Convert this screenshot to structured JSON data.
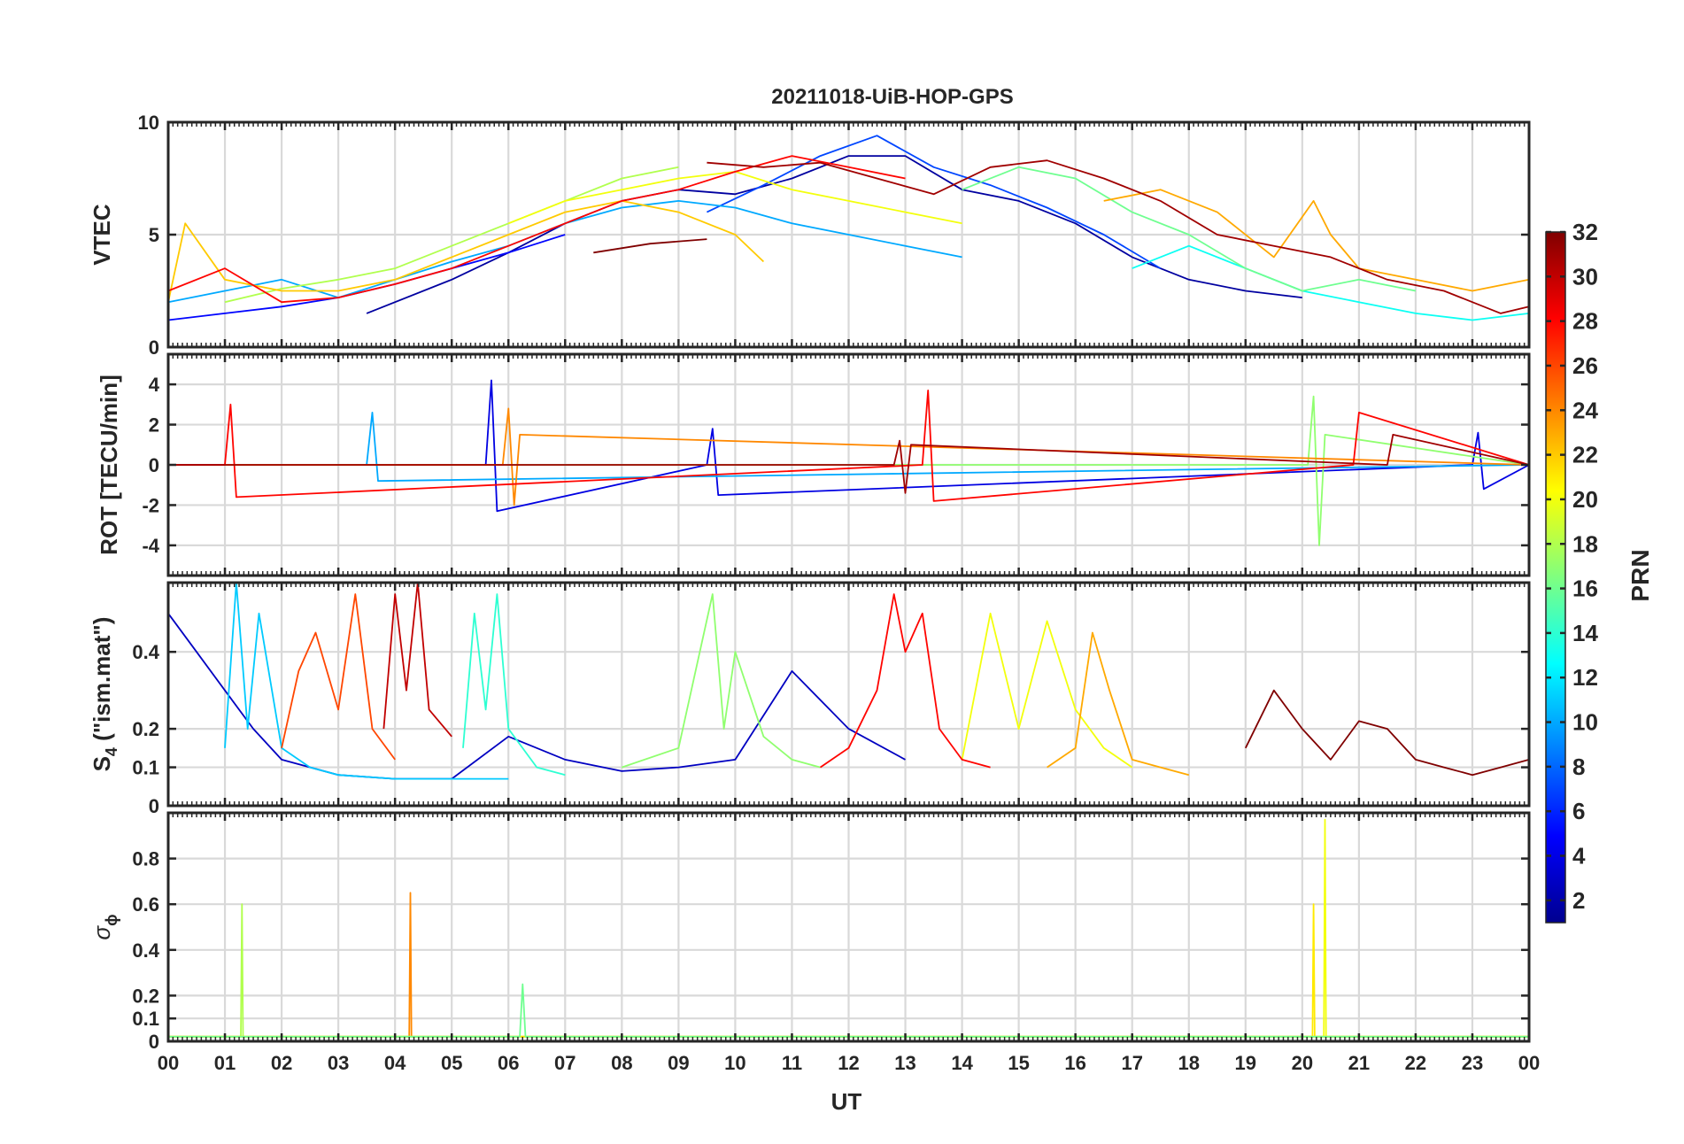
{
  "chart_data": {
    "type": "line",
    "title": "20211018-UiB-HOP-GPS",
    "xlabel": "UT",
    "x_tick_labels": [
      "00",
      "01",
      "02",
      "03",
      "04",
      "05",
      "06",
      "07",
      "08",
      "09",
      "10",
      "11",
      "12",
      "13",
      "14",
      "15",
      "16",
      "17",
      "18",
      "19",
      "20",
      "21",
      "22",
      "23",
      "00"
    ],
    "xlim_hours": [
      0,
      24
    ],
    "colorbar": {
      "label": "PRN",
      "range": [
        1,
        32
      ],
      "tick_labels": [
        "2",
        "4",
        "6",
        "8",
        "10",
        "12",
        "14",
        "16",
        "18",
        "20",
        "22",
        "24",
        "26",
        "28",
        "30",
        "32"
      ],
      "tick_values": [
        2,
        4,
        6,
        8,
        10,
        12,
        14,
        16,
        18,
        20,
        22,
        24,
        26,
        28,
        30,
        32
      ],
      "colormap": "jet"
    },
    "panels": [
      {
        "id": "vtec",
        "ylabel": "VTEC",
        "ylim": [
          0,
          10
        ],
        "y_ticks": [
          0,
          5,
          10
        ],
        "y_tick_labels": [
          "0",
          "5",
          "10"
        ],
        "series": [
          {
            "prn": 2,
            "hours": [
              3.5,
              5,
              6,
              7,
              8,
              9,
              10,
              11,
              12,
              13,
              14,
              15,
              16,
              17,
              18,
              19,
              20
            ],
            "values": [
              1.5,
              3.0,
              4.2,
              5.5,
              6.5,
              7.0,
              6.8,
              7.5,
              8.5,
              8.5,
              7.0,
              6.5,
              5.5,
              4.0,
              3.0,
              2.5,
              2.2
            ]
          },
          {
            "prn": 5,
            "hours": [
              0,
              1,
              2,
              3,
              4,
              5,
              6,
              7
            ],
            "values": [
              1.2,
              1.5,
              1.8,
              2.2,
              2.8,
              3.5,
              4.2,
              5.0
            ]
          },
          {
            "prn": 7,
            "hours": [
              9.5,
              10.5,
              11.5,
              12.5,
              13.5,
              14.5,
              15.5,
              16.5,
              17.5
            ],
            "values": [
              6.0,
              7.2,
              8.5,
              9.4,
              8.0,
              7.2,
              6.2,
              5.0,
              3.5
            ]
          },
          {
            "prn": 10,
            "hours": [
              0,
              1,
              2,
              3,
              4,
              5,
              6,
              7,
              8,
              9,
              10,
              11,
              12,
              13,
              14
            ],
            "values": [
              2.0,
              2.5,
              3.0,
              2.2,
              3.0,
              3.8,
              4.5,
              5.5,
              6.2,
              6.5,
              6.2,
              5.5,
              5.0,
              4.5,
              4.0
            ]
          },
          {
            "prn": 13,
            "hours": [
              17,
              18,
              19,
              20,
              21,
              22,
              23,
              24
            ],
            "values": [
              3.5,
              4.5,
              3.5,
              2.5,
              2.0,
              1.5,
              1.2,
              1.5
            ]
          },
          {
            "prn": 16,
            "hours": [
              14,
              15,
              16,
              17,
              18,
              19,
              20,
              21,
              22
            ],
            "values": [
              7.0,
              8.0,
              7.5,
              6.0,
              5.0,
              3.5,
              2.5,
              3.0,
              2.5
            ]
          },
          {
            "prn": 18,
            "hours": [
              1,
              2,
              3,
              4,
              5,
              6,
              7,
              8,
              9
            ],
            "values": [
              2.0,
              2.6,
              3.0,
              3.5,
              4.5,
              5.5,
              6.5,
              7.5,
              8.0
            ]
          },
          {
            "prn": 20,
            "hours": [
              6,
              7,
              8,
              9,
              10,
              11,
              12,
              13,
              14
            ],
            "values": [
              5.5,
              6.5,
              7.0,
              7.5,
              7.8,
              7.0,
              6.5,
              6.0,
              5.5
            ]
          },
          {
            "prn": 22,
            "hours": [
              0,
              0.3,
              1,
              2,
              3,
              4,
              5,
              6,
              7,
              8,
              9,
              10,
              10.5
            ],
            "values": [
              2.0,
              5.5,
              3.0,
              2.5,
              2.5,
              3.0,
              4.0,
              5.0,
              6.0,
              6.5,
              6.0,
              5.0,
              3.8
            ]
          },
          {
            "prn": 23,
            "hours": [
              16.5,
              17.5,
              18.5,
              19.5,
              20.2,
              20.5,
              21,
              22,
              23,
              24
            ],
            "values": [
              6.5,
              7.0,
              6.0,
              4.0,
              6.5,
              5.0,
              3.5,
              3.0,
              2.5,
              3.0
            ]
          },
          {
            "prn": 28,
            "hours": [
              0,
              1,
              2,
              3,
              4,
              5,
              6,
              7,
              8,
              9,
              10,
              11,
              12,
              13
            ],
            "values": [
              2.5,
              3.5,
              2.0,
              2.2,
              2.8,
              3.5,
              4.5,
              5.5,
              6.5,
              7.0,
              7.8,
              8.5,
              8.0,
              7.5
            ]
          },
          {
            "prn": 31,
            "hours": [
              9.5,
              10.5,
              11.5,
              12.5,
              13.5,
              14.5,
              15.5,
              16.5,
              17.5,
              18.5,
              19.5,
              20.5,
              21.5,
              22.5,
              23.5,
              24
            ],
            "values": [
              8.2,
              8.0,
              8.2,
              7.5,
              6.8,
              8.0,
              8.3,
              7.5,
              6.5,
              5.0,
              4.5,
              4.0,
              3.0,
              2.5,
              1.5,
              1.8
            ]
          },
          {
            "prn": 32,
            "hours": [
              7.5,
              8.5,
              9.5
            ],
            "values": [
              4.2,
              4.6,
              4.8
            ]
          }
        ]
      },
      {
        "id": "rot",
        "ylabel": "ROT [TECU/min]",
        "ylim": [
          -5.5,
          5.5
        ],
        "y_ticks": [
          -4,
          -2,
          0,
          2,
          4
        ],
        "y_tick_labels": [
          "-4",
          "-2",
          "0",
          "2",
          "4"
        ],
        "series": [
          {
            "prn": 4,
            "hours": [
              0,
              5.6,
              5.7,
              5.8,
              9.5,
              9.6,
              9.7,
              23,
              23.1,
              23.2,
              24
            ],
            "values": [
              0,
              0,
              4.2,
              -2.3,
              0,
              1.8,
              -1.5,
              0,
              1.6,
              -1.2,
              0
            ]
          },
          {
            "prn": 10,
            "hours": [
              0,
              3.5,
              3.6,
              3.7,
              24
            ],
            "values": [
              0,
              0,
              2.6,
              -0.8,
              0
            ]
          },
          {
            "prn": 17,
            "hours": [
              0,
              20.1,
              20.2,
              20.3,
              20.4,
              24
            ],
            "values": [
              0,
              0,
              3.4,
              -4.0,
              1.5,
              0
            ]
          },
          {
            "prn": 24,
            "hours": [
              0,
              5.9,
              6.0,
              6.1,
              6.2,
              24
            ],
            "values": [
              0,
              0,
              2.8,
              -2.0,
              1.5,
              0
            ]
          },
          {
            "prn": 28,
            "hours": [
              0,
              1.0,
              1.1,
              1.2,
              13.3,
              13.4,
              13.5,
              20.9,
              21.0,
              24
            ],
            "values": [
              0,
              0,
              3.0,
              -1.6,
              0,
              3.7,
              -1.8,
              0,
              2.6,
              0
            ]
          },
          {
            "prn": 31,
            "hours": [
              0,
              12.8,
              12.9,
              13.0,
              13.1,
              21.5,
              21.6,
              24
            ],
            "values": [
              0,
              0,
              1.2,
              -1.4,
              1.0,
              0,
              1.5,
              0
            ]
          }
        ]
      },
      {
        "id": "s4",
        "ylabel": "S4 (\"ism.mat\")",
        "ylabel_main": "S",
        "ylabel_sub": "4",
        "ylabel_rest": " (\"ism.mat\")",
        "ylim": [
          0,
          0.58
        ],
        "y_ticks": [
          0,
          0.1,
          0.2,
          0.4
        ],
        "y_tick_labels": [
          "0",
          "0.1",
          "0.2",
          "0.4"
        ],
        "series": [
          {
            "prn": 3,
            "hours": [
              0,
              0.5,
              1,
              1.5,
              2,
              3,
              4,
              5,
              6,
              7,
              8,
              9,
              10,
              11,
              12,
              13
            ],
            "values": [
              0.5,
              0.4,
              0.3,
              0.2,
              0.12,
              0.08,
              0.07,
              0.07,
              0.18,
              0.12,
              0.09,
              0.1,
              0.12,
              0.35,
              0.2,
              0.12
            ]
          },
          {
            "prn": 11,
            "hours": [
              1,
              1.2,
              1.4,
              1.6,
              2,
              2.5,
              3,
              4,
              5,
              6
            ],
            "values": [
              0.15,
              0.58,
              0.2,
              0.5,
              0.15,
              0.1,
              0.08,
              0.07,
              0.07,
              0.07
            ]
          },
          {
            "prn": 14,
            "hours": [
              5.2,
              5.4,
              5.6,
              5.8,
              6,
              6.5,
              7
            ],
            "values": [
              0.15,
              0.5,
              0.25,
              0.55,
              0.2,
              0.1,
              0.08
            ]
          },
          {
            "prn": 17,
            "hours": [
              8,
              9,
              9.6,
              9.8,
              10,
              10.5,
              11,
              11.5
            ],
            "values": [
              0.1,
              0.15,
              0.55,
              0.2,
              0.4,
              0.18,
              0.12,
              0.1
            ]
          },
          {
            "prn": 20,
            "hours": [
              14,
              14.5,
              15,
              15.5,
              16,
              16.5,
              17
            ],
            "values": [
              0.12,
              0.5,
              0.2,
              0.48,
              0.25,
              0.15,
              0.1
            ]
          },
          {
            "prn": 23,
            "hours": [
              15.5,
              16,
              16.3,
              16.6,
              17,
              17.5,
              18
            ],
            "values": [
              0.1,
              0.15,
              0.45,
              0.3,
              0.12,
              0.1,
              0.08
            ]
          },
          {
            "prn": 26,
            "hours": [
              2,
              2.3,
              2.6,
              3,
              3.3,
              3.6,
              4
            ],
            "values": [
              0.15,
              0.35,
              0.45,
              0.25,
              0.55,
              0.2,
              0.12
            ]
          },
          {
            "prn": 28,
            "hours": [
              11.5,
              12,
              12.5,
              12.8,
              13,
              13.3,
              13.6,
              14,
              14.5
            ],
            "values": [
              0.1,
              0.15,
              0.3,
              0.55,
              0.4,
              0.5,
              0.2,
              0.12,
              0.1
            ]
          },
          {
            "prn": 30,
            "hours": [
              3.8,
              4,
              4.2,
              4.4,
              4.6,
              5
            ],
            "values": [
              0.2,
              0.55,
              0.3,
              0.58,
              0.25,
              0.18
            ]
          },
          {
            "prn": 32,
            "hours": [
              19,
              19.5,
              20,
              20.5,
              21,
              21.5,
              22,
              22.5,
              23,
              23.5,
              24
            ],
            "values": [
              0.15,
              0.3,
              0.2,
              0.12,
              0.22,
              0.2,
              0.12,
              0.1,
              0.08,
              0.1,
              0.12
            ]
          }
        ]
      },
      {
        "id": "sigma_phi",
        "ylabel": "σ ϕ",
        "ylabel_main": "σ",
        "ylabel_sub": "ϕ",
        "ylim": [
          0,
          1.0
        ],
        "y_ticks": [
          0,
          0.1,
          0.2,
          0.4,
          0.6,
          0.8
        ],
        "y_tick_labels": [
          "0",
          "0.1",
          "0.2",
          "0.4",
          "0.6",
          "0.8"
        ],
        "series": [
          {
            "prn": 18,
            "hours": [
              0,
              1.28,
              1.3,
              1.32,
              24
            ],
            "values": [
              0.02,
              0.02,
              0.6,
              0.02,
              0.02
            ]
          },
          {
            "prn": 24,
            "hours": [
              0,
              4.25,
              4.27,
              4.29,
              24
            ],
            "values": [
              0.02,
              0.02,
              0.65,
              0.02,
              0.02
            ]
          },
          {
            "prn": 20,
            "hours": [
              0,
              20.38,
              20.4,
              20.42,
              24
            ],
            "values": [
              0.02,
              0.02,
              0.97,
              0.02,
              0.02
            ]
          },
          {
            "prn": 21,
            "hours": [
              0,
              20.18,
              20.2,
              20.22,
              24
            ],
            "values": [
              0.02,
              0.02,
              0.6,
              0.02,
              0.02
            ]
          },
          {
            "prn": 16,
            "hours": [
              0,
              6.2,
              6.25,
              6.3,
              24
            ],
            "values": [
              0.02,
              0.02,
              0.25,
              0.02,
              0.02
            ]
          }
        ]
      }
    ]
  }
}
